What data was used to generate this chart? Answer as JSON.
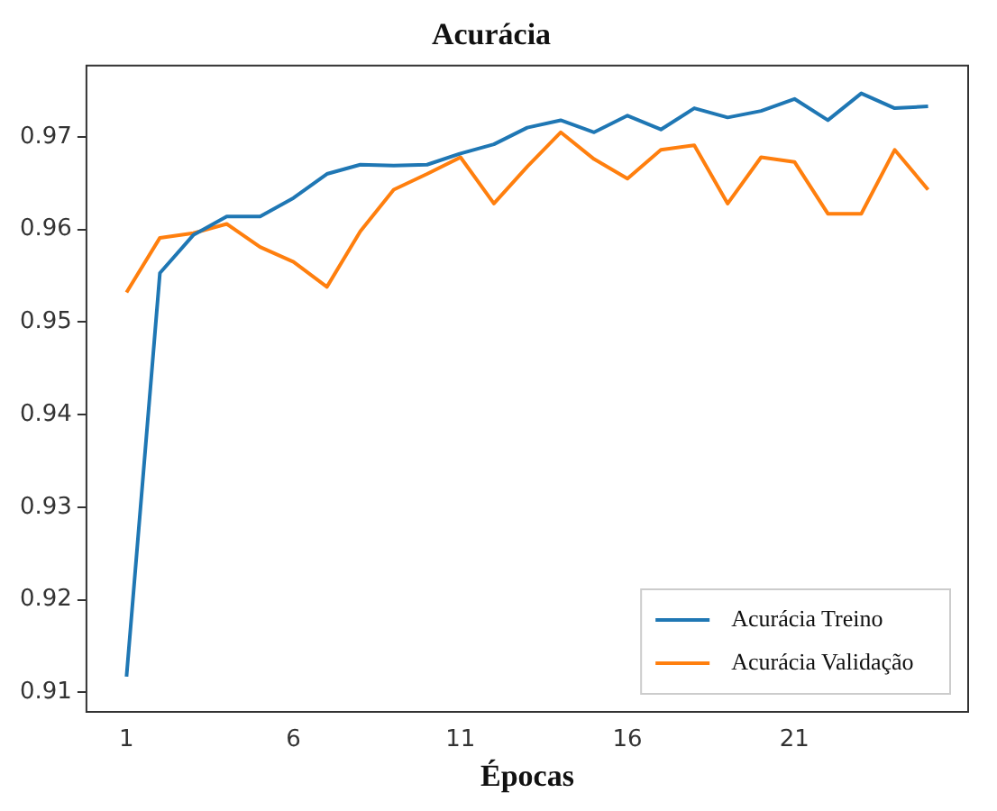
{
  "chart_data": {
    "type": "line",
    "title": "Acurácia",
    "xlabel": "Épocas",
    "x": [
      1,
      2,
      3,
      4,
      5,
      6,
      7,
      8,
      9,
      10,
      11,
      12,
      13,
      14,
      15,
      16,
      17,
      18,
      19,
      20,
      21,
      22,
      23,
      24,
      25
    ],
    "series": [
      {
        "name": "Acurácia Treino",
        "color": "#1f77b4",
        "values": [
          0.9117,
          0.9553,
          0.9594,
          0.9614,
          0.9614,
          0.9634,
          0.966,
          0.967,
          0.9669,
          0.967,
          0.9682,
          0.9692,
          0.971,
          0.9718,
          0.9705,
          0.9723,
          0.9708,
          0.9731,
          0.9721,
          0.9728,
          0.9741,
          0.9718,
          0.9747,
          0.9731,
          0.9733
        ]
      },
      {
        "name": "Acurácia Validação",
        "color": "#ff7f0e",
        "values": [
          0.9532,
          0.9591,
          0.9596,
          0.9606,
          0.9581,
          0.9565,
          0.9538,
          0.9598,
          0.9643,
          0.966,
          0.9678,
          0.9628,
          0.9668,
          0.9705,
          0.9676,
          0.9655,
          0.9686,
          0.9691,
          0.9628,
          0.9678,
          0.9673,
          0.9617,
          0.9617,
          0.9686,
          0.9643
        ]
      }
    ],
    "xlim": [
      -0.2,
      26.2
    ],
    "ylim": [
      0.9079,
      0.9777
    ],
    "xticks": [
      1,
      6,
      11,
      16,
      21
    ],
    "yticks": [
      0.91,
      0.92,
      0.93,
      0.94,
      0.95,
      0.96,
      0.97
    ],
    "grid": false,
    "legend": "bottom right",
    "marker": "none",
    "line_style": "solid"
  }
}
